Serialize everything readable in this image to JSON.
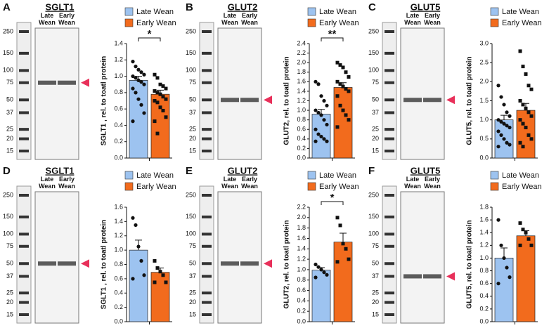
{
  "chart_data": [
    {
      "type": "bar",
      "panel": "A",
      "title": "SGLT1",
      "ladder": [
        250,
        150,
        100,
        75,
        50,
        37,
        25,
        20,
        15
      ],
      "lanes": [
        "Late Wean",
        "Early Wean"
      ],
      "ylabel": "SGLT1 , rel. to toatl protein",
      "annotation": "*",
      "ylim": [
        0,
        1.4
      ],
      "yticks": [
        {
          "value": 0,
          "label": "0.0"
        },
        0.2,
        0.4,
        0.6,
        0.8,
        {
          "value": 1,
          "label": "1.0"
        },
        1.2,
        1.4
      ],
      "series": [
        {
          "name": "Late Wean",
          "color": "#9dc3f0",
          "values": [
            0.95
          ],
          "errors": [
            0.05
          ],
          "points": [
            1.18,
            1.12,
            1.08,
            1.05,
            1.02,
            1.0,
            0.98,
            0.95,
            0.93,
            0.9,
            0.85,
            0.8,
            0.72,
            0.65,
            0.55,
            0.45
          ]
        },
        {
          "name": "Early Wean",
          "color": "#f26b1d",
          "values": [
            0.78
          ],
          "errors": [
            0.05
          ],
          "points": [
            1.02,
            0.98,
            0.9,
            0.88,
            0.85,
            0.82,
            0.8,
            0.78,
            0.75,
            0.72,
            0.7,
            0.68,
            0.62,
            0.58,
            0.5,
            0.45,
            0.3
          ]
        }
      ]
    },
    {
      "type": "bar",
      "panel": "B",
      "title": "GLUT2",
      "ladder": [
        250,
        150,
        100,
        75,
        50,
        37,
        25,
        20,
        15
      ],
      "lanes": [
        "Late Wean",
        "Early Wean"
      ],
      "ylabel": "GLUT2, rel. to toatl protein",
      "annotation": "**",
      "ylim": [
        0,
        2.4
      ],
      "yticks": [
        {
          "value": 0,
          "label": "0.0"
        },
        0.2,
        0.4,
        0.6,
        0.8,
        {
          "value": 1,
          "label": "1.0"
        },
        1.2,
        1.4,
        1.6,
        1.8,
        {
          "value": 2,
          "label": "2.0"
        },
        2.2,
        2.4
      ],
      "series": [
        {
          "name": "Late Wean",
          "color": "#9dc3f0",
          "values": [
            0.92
          ],
          "errors": [
            0.1
          ],
          "points": [
            1.6,
            1.55,
            1.3,
            1.2,
            1.1,
            1.0,
            0.95,
            0.9,
            0.8,
            0.7,
            0.6,
            0.5,
            0.45,
            0.4,
            0.35,
            0.35
          ]
        },
        {
          "name": "Early Wean",
          "color": "#f26b1d",
          "values": [
            1.48
          ],
          "errors": [
            0.1
          ],
          "points": [
            2.0,
            1.95,
            1.9,
            1.8,
            1.7,
            1.6,
            1.55,
            1.5,
            1.45,
            1.4,
            1.3,
            1.1,
            1.0,
            0.9,
            0.8,
            0.65
          ]
        }
      ]
    },
    {
      "type": "bar",
      "panel": "C",
      "title": "GLUT5",
      "ladder": [
        250,
        150,
        100,
        75,
        50,
        37,
        25,
        20,
        15
      ],
      "lanes": [
        "Late Wean",
        "Early Wean"
      ],
      "ylabel": "GLUT5, rel. to toatl protein",
      "ylim": [
        0,
        3
      ],
      "yticks": [
        {
          "value": 0,
          "label": "0.0"
        },
        0.5,
        {
          "value": 1,
          "label": "1.0"
        },
        1.5,
        {
          "value": 2,
          "label": "2.0"
        },
        2.5,
        {
          "value": 3,
          "label": "3.0"
        }
      ],
      "series": [
        {
          "name": "Late Wean",
          "color": "#9dc3f0",
          "values": [
            1.0
          ],
          "errors": [
            0.12
          ],
          "points": [
            1.9,
            1.6,
            1.4,
            1.2,
            1.1,
            1.0,
            0.95,
            0.9,
            0.85,
            0.8,
            0.7,
            0.6,
            0.5,
            0.4,
            0.35,
            0.3
          ]
        },
        {
          "name": "Early Wean",
          "color": "#f26b1d",
          "values": [
            1.25
          ],
          "errors": [
            0.18
          ],
          "points": [
            2.8,
            2.4,
            2.2,
            1.9,
            1.8,
            1.5,
            1.4,
            1.3,
            1.2,
            1.1,
            1.0,
            0.9,
            0.8,
            0.6,
            0.5,
            0.4,
            0.3
          ]
        }
      ]
    },
    {
      "type": "bar",
      "panel": "D",
      "title": "SGLT1",
      "ladder": [
        250,
        150,
        100,
        75,
        50,
        37,
        25,
        20,
        15
      ],
      "lanes": [
        "Late Wean",
        "Early Wean"
      ],
      "ylabel": "SGLT1 , rel. to toatl protein",
      "ylim": [
        0,
        1.6
      ],
      "yticks": [
        {
          "value": 0,
          "label": "0.0"
        },
        0.2,
        0.4,
        0.6,
        0.8,
        {
          "value": 1,
          "label": "1.0"
        },
        1.2,
        1.4,
        1.6
      ],
      "series": [
        {
          "name": "Late Wean",
          "color": "#9dc3f0",
          "values": [
            1.0
          ],
          "errors": [
            0.14
          ],
          "points": [
            1.45,
            1.35,
            1.05,
            0.85,
            0.65,
            0.6
          ]
        },
        {
          "name": "Early Wean",
          "color": "#f26b1d",
          "values": [
            0.69
          ],
          "errors": [
            0.06
          ],
          "points": [
            0.85,
            0.75,
            0.7,
            0.65,
            0.55,
            0.55
          ]
        }
      ]
    },
    {
      "type": "bar",
      "panel": "E",
      "title": "GLUT2",
      "ladder": [
        250,
        150,
        100,
        75,
        50,
        37,
        25,
        20,
        15
      ],
      "lanes": [
        "Late Wean",
        "Early Wean"
      ],
      "ylabel": "GLUT2, rel. to toatl protein",
      "annotation": "*",
      "ylim": [
        0,
        2.2
      ],
      "yticks": [
        {
          "value": 0,
          "label": "0.0"
        },
        0.2,
        0.4,
        0.6,
        0.8,
        {
          "value": 1,
          "label": "1.0"
        },
        1.2,
        1.4,
        1.6,
        1.8,
        {
          "value": 2,
          "label": "2.0"
        },
        2.2
      ],
      "series": [
        {
          "name": "Late Wean",
          "color": "#9dc3f0",
          "values": [
            0.99
          ],
          "errors": [
            0.05
          ],
          "points": [
            1.1,
            1.05,
            1.0,
            0.95,
            0.9,
            0.85
          ]
        },
        {
          "name": "Early Wean",
          "color": "#f26b1d",
          "values": [
            1.53
          ],
          "errors": [
            0.17
          ],
          "points": [
            2.0,
            1.85,
            1.5,
            1.4,
            1.2,
            1.15
          ]
        }
      ]
    },
    {
      "type": "bar",
      "panel": "F",
      "title": "GLUT5",
      "ladder": [
        250,
        150,
        100,
        75,
        50,
        37,
        25,
        20,
        15
      ],
      "lanes": [
        "Late Wean",
        "Early Wean"
      ],
      "ylabel": "GLUT5, rel. to toatl protein",
      "ylim": [
        0,
        1.8
      ],
      "yticks": [
        {
          "value": 0,
          "label": "0.0"
        },
        0.2,
        0.4,
        0.6,
        0.8,
        {
          "value": 1,
          "label": "1.0"
        },
        1.2,
        1.4,
        1.6,
        1.8
      ],
      "series": [
        {
          "name": "Late Wean",
          "color": "#9dc3f0",
          "values": [
            1.0
          ],
          "errors": [
            0.16
          ],
          "points": [
            1.6,
            1.2,
            1.0,
            0.85,
            0.7,
            0.6
          ]
        },
        {
          "name": "Early Wean",
          "color": "#f26b1d",
          "values": [
            1.35
          ],
          "errors": [
            0.08
          ],
          "points": [
            1.55,
            1.45,
            1.4,
            1.3,
            1.2,
            1.2
          ]
        }
      ]
    }
  ]
}
